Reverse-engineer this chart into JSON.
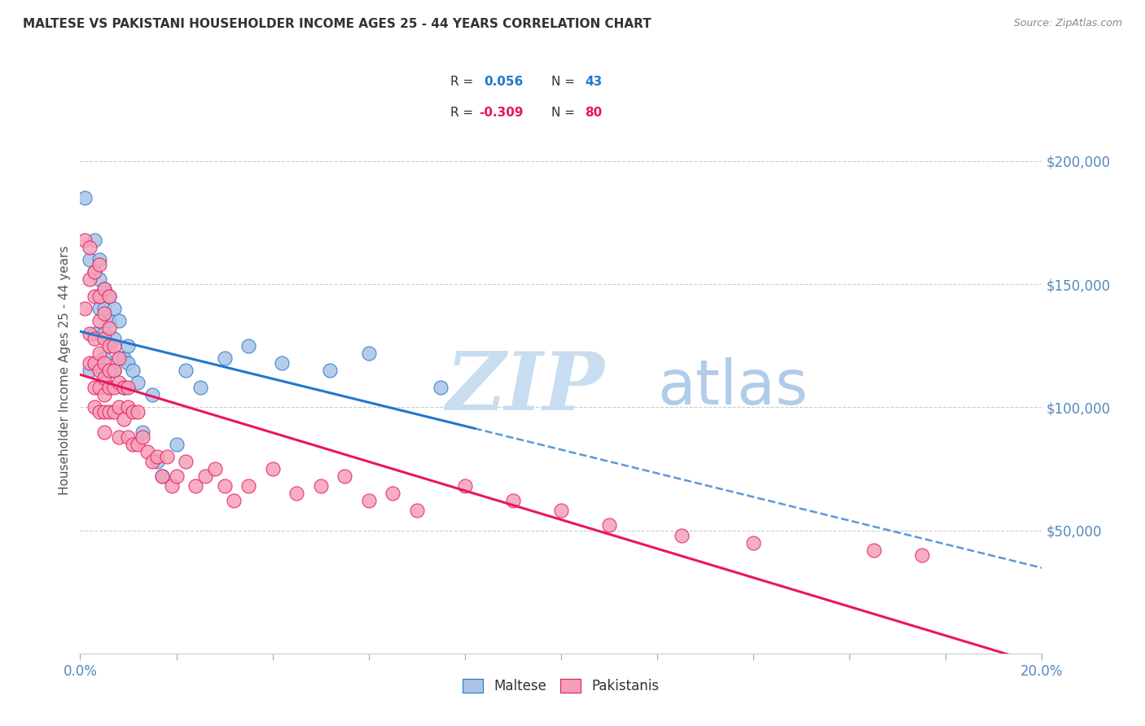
{
  "title": "MALTESE VS PAKISTANI HOUSEHOLDER INCOME AGES 25 - 44 YEARS CORRELATION CHART",
  "source": "Source: ZipAtlas.com",
  "ylabel": "Householder Income Ages 25 - 44 years",
  "xlim": [
    0.0,
    0.2
  ],
  "ylim": [
    0,
    230000
  ],
  "yticks_right": [
    50000,
    100000,
    150000,
    200000
  ],
  "ytick_labels_right": [
    "$50,000",
    "$100,000",
    "$150,000",
    "$200,000"
  ],
  "maltese_R": 0.056,
  "maltese_N": 43,
  "pakistani_R": -0.309,
  "pakistani_N": 80,
  "maltese_color": "#aac4e8",
  "maltese_line_color": "#2277cc",
  "pakistani_color": "#f5a0b8",
  "pakistani_line_color": "#e8185a",
  "background_color": "#ffffff",
  "grid_color": "#cccccc",
  "watermark_zip": "ZIP",
  "watermark_atlas": "atlas",
  "watermark_color_zip": "#c8ddf0",
  "watermark_color_atlas": "#b0cce8",
  "legend_blue_text_color": "#2277cc",
  "legend_pink_text_color": "#e8185a",
  "maltese_x": [
    0.001,
    0.002,
    0.002,
    0.003,
    0.003,
    0.003,
    0.004,
    0.004,
    0.004,
    0.004,
    0.005,
    0.005,
    0.005,
    0.005,
    0.005,
    0.005,
    0.006,
    0.006,
    0.006,
    0.007,
    0.007,
    0.007,
    0.008,
    0.008,
    0.009,
    0.009,
    0.01,
    0.01,
    0.011,
    0.012,
    0.013,
    0.015,
    0.016,
    0.017,
    0.02,
    0.022,
    0.025,
    0.03,
    0.035,
    0.042,
    0.052,
    0.06,
    0.075
  ],
  "maltese_y": [
    185000,
    160000,
    115000,
    168000,
    155000,
    130000,
    160000,
    152000,
    140000,
    118000,
    148000,
    140000,
    130000,
    120000,
    115000,
    110000,
    145000,
    135000,
    115000,
    140000,
    128000,
    115000,
    135000,
    120000,
    120000,
    108000,
    125000,
    118000,
    115000,
    110000,
    90000,
    105000,
    78000,
    72000,
    85000,
    115000,
    108000,
    120000,
    125000,
    118000,
    115000,
    122000,
    108000
  ],
  "pakistani_x": [
    0.001,
    0.001,
    0.002,
    0.002,
    0.002,
    0.002,
    0.003,
    0.003,
    0.003,
    0.003,
    0.003,
    0.003,
    0.004,
    0.004,
    0.004,
    0.004,
    0.004,
    0.004,
    0.004,
    0.005,
    0.005,
    0.005,
    0.005,
    0.005,
    0.005,
    0.005,
    0.005,
    0.006,
    0.006,
    0.006,
    0.006,
    0.006,
    0.006,
    0.007,
    0.007,
    0.007,
    0.007,
    0.008,
    0.008,
    0.008,
    0.008,
    0.009,
    0.009,
    0.01,
    0.01,
    0.01,
    0.011,
    0.011,
    0.012,
    0.012,
    0.013,
    0.014,
    0.015,
    0.016,
    0.017,
    0.018,
    0.019,
    0.02,
    0.022,
    0.024,
    0.026,
    0.028,
    0.03,
    0.032,
    0.035,
    0.04,
    0.045,
    0.05,
    0.055,
    0.06,
    0.065,
    0.07,
    0.08,
    0.09,
    0.1,
    0.11,
    0.125,
    0.14,
    0.165,
    0.175
  ],
  "pakistani_y": [
    168000,
    140000,
    165000,
    152000,
    130000,
    118000,
    155000,
    145000,
    128000,
    118000,
    108000,
    100000,
    158000,
    145000,
    135000,
    122000,
    115000,
    108000,
    98000,
    148000,
    138000,
    128000,
    118000,
    112000,
    105000,
    98000,
    90000,
    145000,
    132000,
    125000,
    115000,
    108000,
    98000,
    125000,
    115000,
    108000,
    98000,
    120000,
    110000,
    100000,
    88000,
    108000,
    95000,
    108000,
    100000,
    88000,
    98000,
    85000,
    98000,
    85000,
    88000,
    82000,
    78000,
    80000,
    72000,
    80000,
    68000,
    72000,
    78000,
    68000,
    72000,
    75000,
    68000,
    62000,
    68000,
    75000,
    65000,
    68000,
    72000,
    62000,
    65000,
    58000,
    68000,
    62000,
    58000,
    52000,
    48000,
    45000,
    42000,
    40000
  ]
}
